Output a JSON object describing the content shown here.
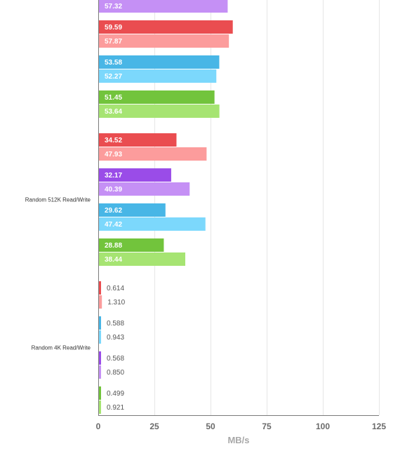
{
  "chart_data": {
    "type": "bar",
    "orientation": "horizontal",
    "xlabel": "MB/s",
    "xlim": [
      0,
      125
    ],
    "xticks": [
      0,
      25,
      50,
      75,
      100,
      125
    ],
    "grid": true,
    "groups": [
      {
        "label": "",
        "pairs": [
          {
            "color_dark": "#9a4ce8",
            "color_light": "#c590f5",
            "values": [
              null,
              57.32
            ],
            "labels": [
              "",
              "57.32"
            ]
          },
          {
            "color_dark": "#ea4d50",
            "color_light": "#fc9c9c",
            "values": [
              59.59,
              57.87
            ],
            "labels": [
              "59.59",
              "57.87"
            ]
          },
          {
            "color_dark": "#48b6e6",
            "color_light": "#7cd8fc",
            "values": [
              53.58,
              52.27
            ],
            "labels": [
              "53.58",
              "52.27"
            ]
          },
          {
            "color_dark": "#72c43c",
            "color_light": "#a6e472",
            "values": [
              51.45,
              53.64
            ],
            "labels": [
              "51.45",
              "53.64"
            ]
          }
        ]
      },
      {
        "label": "Random 512K Read/Write",
        "pairs": [
          {
            "color_dark": "#ea4d50",
            "color_light": "#fc9c9c",
            "values": [
              34.52,
              47.93
            ],
            "labels": [
              "34.52",
              "47.93"
            ]
          },
          {
            "color_dark": "#9a4ce8",
            "color_light": "#c590f5",
            "values": [
              32.17,
              40.39
            ],
            "labels": [
              "32.17",
              "40.39"
            ]
          },
          {
            "color_dark": "#48b6e6",
            "color_light": "#7cd8fc",
            "values": [
              29.62,
              47.42
            ],
            "labels": [
              "29.62",
              "47.42"
            ]
          },
          {
            "color_dark": "#72c43c",
            "color_light": "#a6e472",
            "values": [
              28.88,
              38.44
            ],
            "labels": [
              "28.88",
              "38.44"
            ]
          }
        ]
      },
      {
        "label": "Random 4K Read/Write",
        "pairs": [
          {
            "color_dark": "#ea4d50",
            "color_light": "#fc9c9c",
            "values": [
              0.614,
              1.31
            ],
            "labels": [
              "0.614",
              "1.310"
            ]
          },
          {
            "color_dark": "#48b6e6",
            "color_light": "#7cd8fc",
            "values": [
              0.588,
              0.943
            ],
            "labels": [
              "0.588",
              "0.943"
            ]
          },
          {
            "color_dark": "#9a4ce8",
            "color_light": "#c590f5",
            "values": [
              0.568,
              0.85
            ],
            "labels": [
              "0.568",
              "0.850"
            ]
          },
          {
            "color_dark": "#72c43c",
            "color_light": "#a6e472",
            "values": [
              0.499,
              0.921
            ],
            "labels": [
              "0.499",
              "0.921"
            ]
          }
        ]
      }
    ]
  }
}
